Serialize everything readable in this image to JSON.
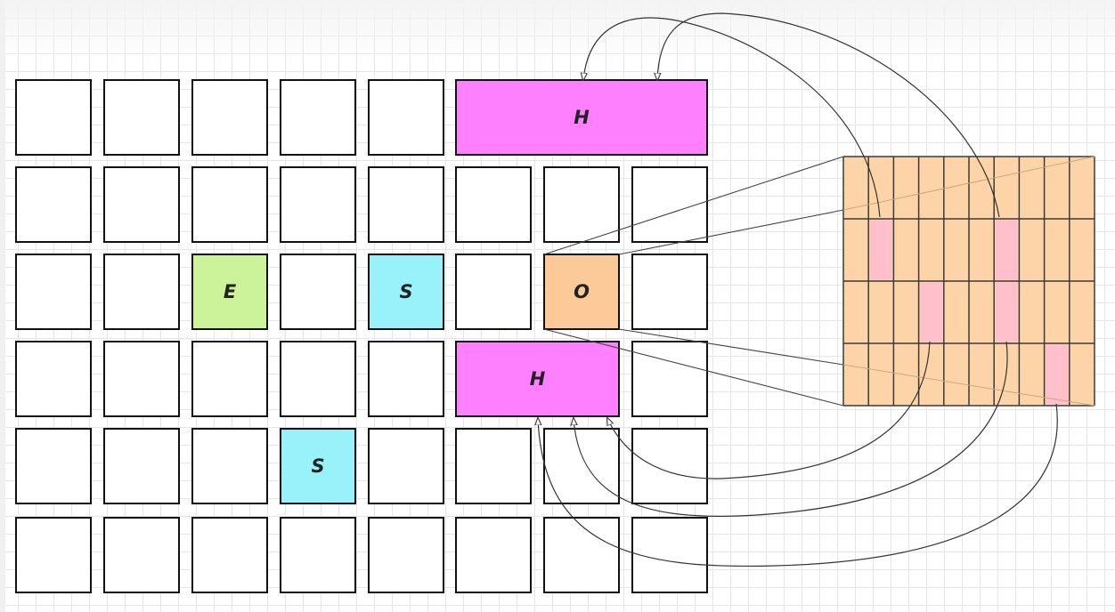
{
  "grid": {
    "row1": {
      "h_block_label": "H"
    },
    "row3": {
      "e_label": "E",
      "s_label": "S",
      "o_label": "O"
    },
    "row4": {
      "h_block_label": "H"
    },
    "row5": {
      "s_label": "S"
    }
  },
  "colors": {
    "h_block": "#ff80ff",
    "e_cell": "#ccf29a",
    "s_cell": "#99f2fa",
    "o_cell": "#fcc998",
    "kernel_fill": "#fdd4a8",
    "kernel_highlight": "#ffc0cb",
    "line": "#444444"
  },
  "kernel": {
    "rows": 4,
    "cols": 10,
    "highlighted_cells": [
      [
        1,
        1
      ],
      [
        1,
        6
      ],
      [
        2,
        3
      ],
      [
        2,
        6
      ],
      [
        3,
        8
      ]
    ]
  }
}
